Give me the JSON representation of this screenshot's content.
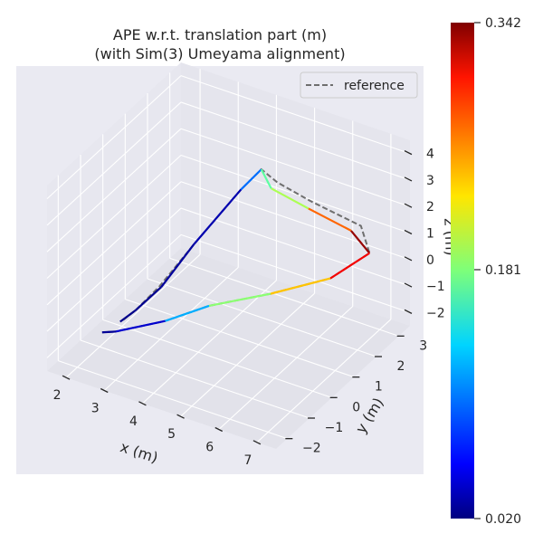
{
  "chart_data": {
    "type": "line",
    "projection": "3d",
    "title_line1": "APE w.r.t. translation part (m)",
    "title_line2": "(with Sim(3) Umeyama alignment)",
    "xlabel": "x (m)",
    "ylabel": "y (m)",
    "zlabel": "z (m)",
    "x_ticks": [
      "2",
      "3",
      "4",
      "5",
      "6",
      "7"
    ],
    "y_ticks": [
      "−2",
      "−1",
      "0",
      "1",
      "2",
      "3"
    ],
    "z_ticks": [
      "4",
      "3",
      "2",
      "1",
      "0",
      "−1",
      "−2"
    ],
    "xlim": [
      1.5,
      7.5
    ],
    "ylim": [
      -2.5,
      3.5
    ],
    "zlim": [
      -2.5,
      4.5
    ],
    "grid": true,
    "legend": {
      "position": "top-right",
      "entries": [
        {
          "label": "reference",
          "style": "dashed",
          "color": "#6e6e6e"
        }
      ]
    },
    "colorbar": {
      "colormap": "jet",
      "min": 0.02,
      "mid": 0.181,
      "max": 0.342,
      "tick_labels": [
        "0.342",
        "0.181",
        "0.020"
      ]
    },
    "reference": [
      [
        2.5,
        -0.8,
        -1.4
      ],
      [
        2.7,
        -0.6,
        -1.1
      ],
      [
        3.1,
        -0.2,
        -0.3
      ],
      [
        3.6,
        0.5,
        1.0
      ],
      [
        4.3,
        1.4,
        2.7
      ],
      [
        4.6,
        1.8,
        3.3
      ],
      [
        4.9,
        2.0,
        2.8
      ],
      [
        5.6,
        2.3,
        2.2
      ],
      [
        6.8,
        2.5,
        1.7
      ],
      [
        7.2,
        2.2,
        1.1
      ],
      [
        6.7,
        1.3,
        0.6
      ],
      [
        5.6,
        0.5,
        0.1
      ],
      [
        4.4,
        -0.2,
        -0.4
      ],
      [
        3.6,
        -0.8,
        -0.9
      ],
      [
        2.6,
        -1.3,
        -1.4
      ],
      [
        2.3,
        -1.4,
        -1.5
      ]
    ],
    "estimate": [
      {
        "x": 2.45,
        "y": -0.85,
        "z": -1.45,
        "ape": 0.025
      },
      {
        "x": 2.7,
        "y": -0.6,
        "z": -1.1,
        "ape": 0.022
      },
      {
        "x": 3.15,
        "y": -0.2,
        "z": -0.3,
        "ape": 0.028
      },
      {
        "x": 3.6,
        "y": 0.5,
        "z": 1.0,
        "ape": 0.03
      },
      {
        "x": 4.3,
        "y": 1.4,
        "z": 2.7,
        "ape": 0.04
      },
      {
        "x": 4.6,
        "y": 1.8,
        "z": 3.3,
        "ape": 0.15
      },
      {
        "x": 4.8,
        "y": 1.9,
        "z": 2.6,
        "ape": 0.19
      },
      {
        "x": 5.6,
        "y": 2.2,
        "z": 2.0,
        "ape": 0.2
      },
      {
        "x": 6.6,
        "y": 2.4,
        "z": 1.5,
        "ape": 0.34
      },
      {
        "x": 7.2,
        "y": 2.2,
        "z": 1.1,
        "ape": 0.33
      },
      {
        "x": 6.7,
        "y": 1.3,
        "z": 0.6,
        "ape": 0.28
      },
      {
        "x": 5.6,
        "y": 0.5,
        "z": 0.1,
        "ape": 0.2
      },
      {
        "x": 4.4,
        "y": -0.2,
        "z": -0.4,
        "ape": 0.17
      },
      {
        "x": 3.6,
        "y": -0.8,
        "z": -0.9,
        "ape": 0.06
      },
      {
        "x": 2.6,
        "y": -1.3,
        "z": -1.4,
        "ape": 0.03
      },
      {
        "x": 2.3,
        "y": -1.4,
        "z": -1.5,
        "ape": 0.025
      }
    ]
  }
}
